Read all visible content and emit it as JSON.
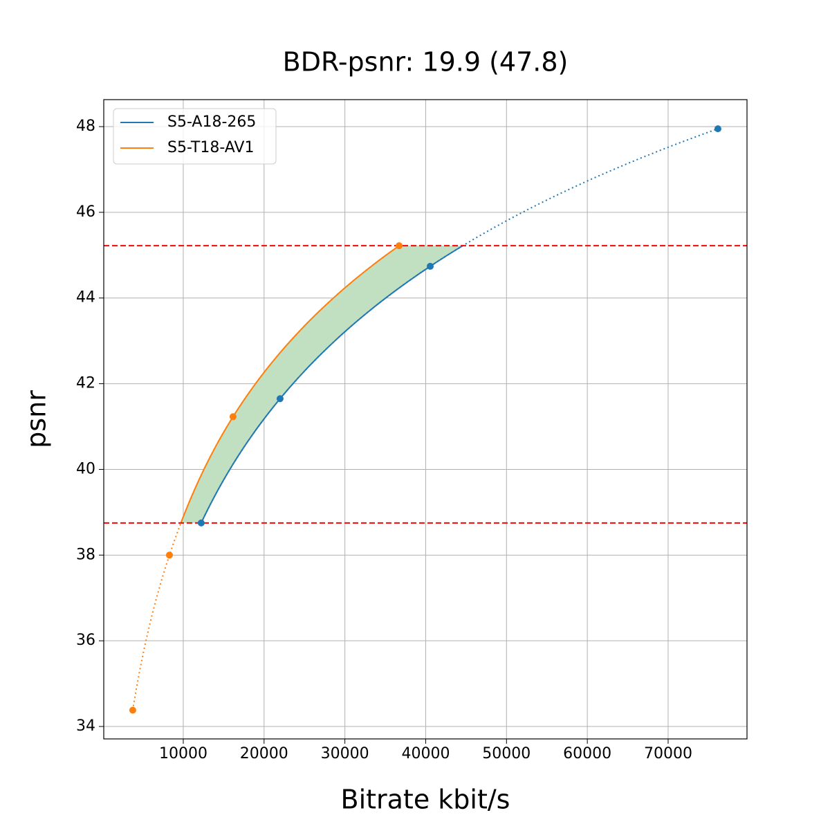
{
  "chart_data": {
    "type": "line",
    "title": "BDR-psnr: 19.9 (47.8)",
    "xlabel": "Bitrate kbit/s",
    "ylabel": "psnr",
    "series": [
      {
        "name": "S5-A18-265",
        "color": "#1f77b4",
        "x": [
          12220,
          21980,
          40560,
          76160
        ],
        "values": [
          38.75,
          41.65,
          44.74,
          47.95
        ]
      },
      {
        "name": "S5-T18-AV1",
        "color": "#ff7f0e",
        "x": [
          3750,
          8290,
          16160,
          36710
        ],
        "values": [
          34.38,
          38.0,
          41.23,
          45.22
        ]
      }
    ],
    "reference_lines": {
      "values": [
        45.22,
        38.75
      ],
      "color": "#ff0000"
    },
    "fill_color": "#c1dfc1",
    "xlim": [
      160,
      79760
    ],
    "xticks": [
      10000,
      20000,
      30000,
      40000,
      50000,
      60000,
      70000
    ],
    "ylim": [
      33.71,
      48.63
    ],
    "yticks": [
      34,
      36,
      38,
      40,
      42,
      44,
      46,
      48
    ],
    "grid": true,
    "legend": "upper left"
  }
}
